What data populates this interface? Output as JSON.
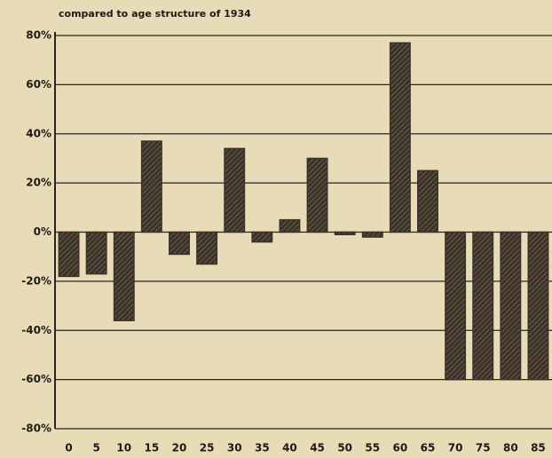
{
  "chart_data": {
    "type": "bar",
    "title": "compared to age structure of 1934",
    "categories": [
      "0",
      "5",
      "10",
      "15",
      "20",
      "25",
      "30",
      "35",
      "40",
      "45",
      "50",
      "55",
      "60",
      "65",
      "70",
      "75",
      "80",
      "85"
    ],
    "values": [
      -18,
      -17,
      -36,
      37,
      -9,
      -13,
      34,
      -4,
      5,
      30,
      -1,
      -2,
      77,
      25,
      -60,
      -60,
      -60,
      -60
    ],
    "color": "#3a3228",
    "ylim": [
      -80,
      80
    ],
    "yticks": [
      {
        "value": 80,
        "label": "80%"
      },
      {
        "value": 60,
        "label": "60%"
      },
      {
        "value": 40,
        "label": "40%"
      },
      {
        "value": 20,
        "label": "20%"
      },
      {
        "value": 0,
        "label": "0%"
      },
      {
        "value": -20,
        "label": "-20%"
      },
      {
        "value": -40,
        "label": "-40%"
      },
      {
        "value": -60,
        "label": "-60%"
      },
      {
        "value": -80,
        "label": "-80%"
      }
    ],
    "grid": true
  }
}
